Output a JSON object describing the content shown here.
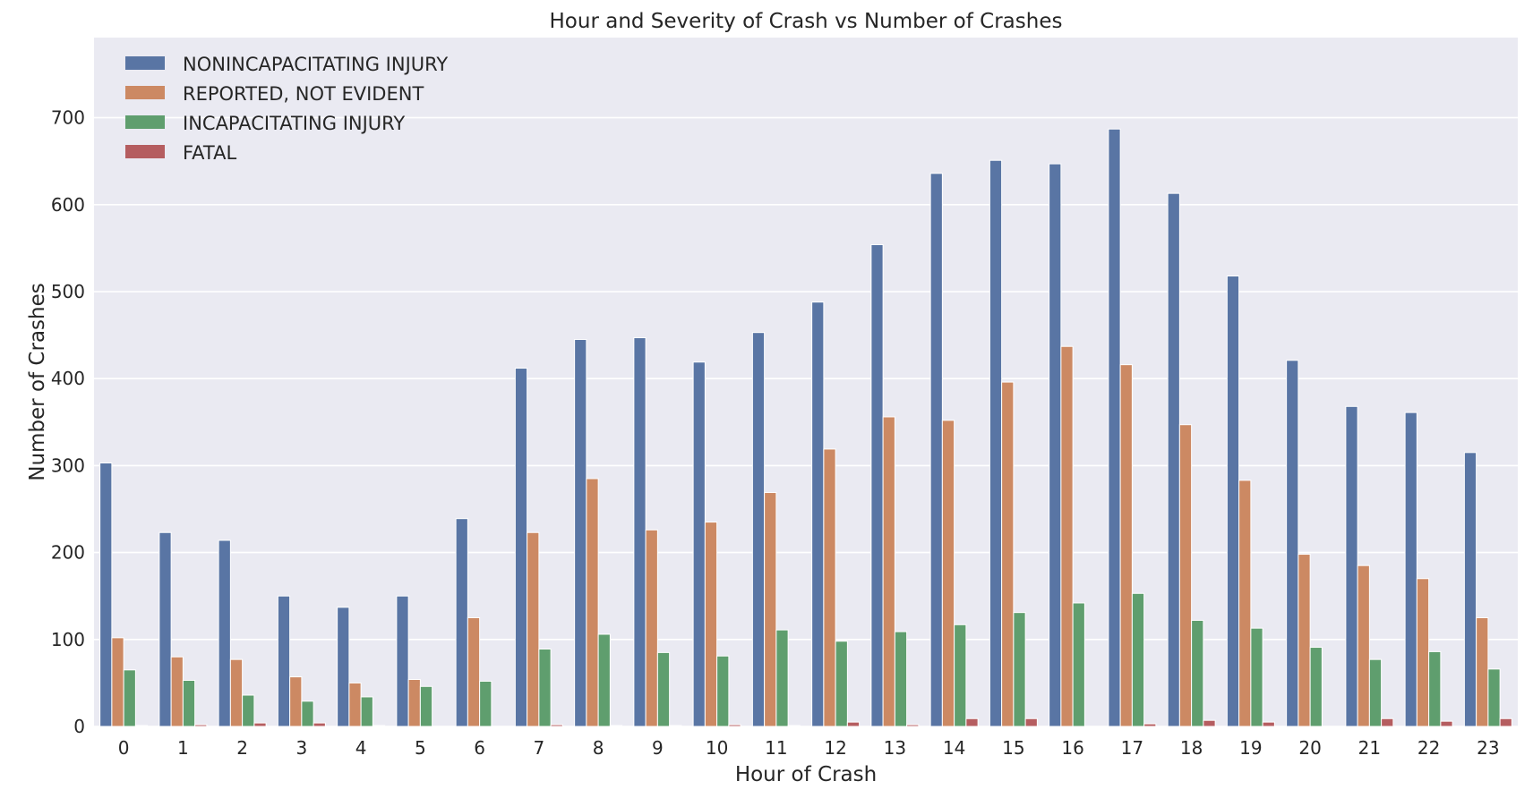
{
  "chart_data": {
    "type": "bar",
    "title": "Hour and Severity of Crash vs Number of Crashes",
    "xlabel": "Hour of Crash",
    "ylabel": "Number of Crashes",
    "ylim": [
      0,
      720
    ],
    "yticks": [
      0,
      100,
      200,
      300,
      400,
      500,
      600,
      700
    ],
    "grid": true,
    "legend_placement": "top-left",
    "categories": [
      "0",
      "1",
      "2",
      "3",
      "4",
      "5",
      "6",
      "7",
      "8",
      "9",
      "10",
      "11",
      "12",
      "13",
      "14",
      "15",
      "16",
      "17",
      "18",
      "19",
      "20",
      "21",
      "22",
      "23"
    ],
    "series": [
      {
        "name": "NONINCAPACITATING INJURY",
        "color": "#5975a4",
        "values": [
          303,
          223,
          214,
          150,
          137,
          150,
          239,
          412,
          445,
          447,
          419,
          453,
          488,
          554,
          636,
          651,
          647,
          687,
          613,
          518,
          421,
          368,
          361,
          315
        ]
      },
      {
        "name": "REPORTED, NOT EVIDENT",
        "color": "#cc8963",
        "values": [
          102,
          80,
          77,
          57,
          50,
          54,
          125,
          223,
          285,
          226,
          235,
          269,
          319,
          356,
          352,
          396,
          437,
          416,
          347,
          283,
          198,
          185,
          170,
          125
        ]
      },
      {
        "name": "INCAPACITATING INJURY",
        "color": "#5f9e6e",
        "values": [
          65,
          53,
          36,
          29,
          34,
          46,
          52,
          89,
          106,
          85,
          81,
          111,
          98,
          109,
          117,
          131,
          142,
          153,
          122,
          113,
          91,
          77,
          86,
          66
        ]
      },
      {
        "name": "FATAL",
        "color": "#b55d60",
        "values": [
          1,
          2,
          4,
          4,
          1,
          0,
          0,
          2,
          1,
          1,
          2,
          1,
          5,
          2,
          9,
          9,
          0,
          3,
          7,
          5,
          0,
          9,
          6,
          9
        ]
      }
    ]
  }
}
